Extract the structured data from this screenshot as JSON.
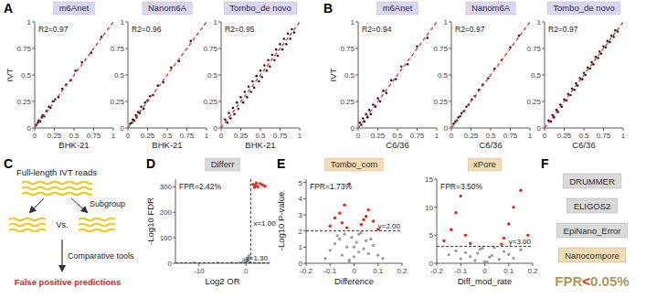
{
  "panel_labels": [
    "A",
    "B",
    "C",
    "D",
    "E",
    "F"
  ],
  "chart_data": [
    {
      "type": "scatter",
      "title": "m6Anet",
      "x_label": "BHK-21",
      "y_label": "IVT",
      "annotation": "R2=0.97",
      "xlim": [
        0,
        1
      ],
      "ylim": [
        0,
        1
      ],
      "xticks": [
        0,
        0.25,
        0.5,
        0.75,
        1
      ],
      "yticks": [
        0,
        0.25,
        0.5,
        0.75,
        1
      ],
      "series": [
        {
          "color": "#222222",
          "marker": "circle",
          "x": [
            0.02,
            0.04,
            0.05,
            0.07,
            0.09,
            0.1,
            0.12,
            0.15,
            0.18,
            0.2,
            0.23,
            0.26,
            0.3,
            0.35,
            0.4,
            0.46,
            0.52,
            0.6,
            0.72,
            0.85
          ],
          "values": [
            0.03,
            0.05,
            0.07,
            0.06,
            0.1,
            0.12,
            0.11,
            0.16,
            0.2,
            0.19,
            0.25,
            0.27,
            0.29,
            0.37,
            0.41,
            0.45,
            0.54,
            0.62,
            0.71,
            0.86
          ]
        }
      ],
      "ref_line": {
        "x": [
          0,
          1
        ],
        "values": [
          0,
          1
        ],
        "color": "#e8231c",
        "line_style": "dashed"
      }
    },
    {
      "type": "scatter",
      "title": "Nanom6A",
      "x_label": "BHK-21",
      "annotation": "R2=0.96",
      "xlim": [
        0,
        1
      ],
      "ylim": [
        0,
        1
      ],
      "xticks": [
        0,
        0.25,
        0.5,
        0.75,
        1
      ],
      "yticks": [
        0,
        0.25,
        0.5,
        0.75,
        1
      ],
      "series": [
        {
          "color": "#222222",
          "marker": "circle",
          "x": [
            0.03,
            0.05,
            0.06,
            0.08,
            0.1,
            0.11,
            0.13,
            0.15,
            0.17,
            0.2,
            0.22,
            0.25,
            0.28,
            0.32,
            0.38,
            0.45,
            0.55,
            0.65,
            0.8
          ],
          "values": [
            0.04,
            0.05,
            0.08,
            0.07,
            0.12,
            0.1,
            0.15,
            0.14,
            0.2,
            0.18,
            0.24,
            0.26,
            0.3,
            0.31,
            0.4,
            0.43,
            0.57,
            0.63,
            0.82
          ]
        }
      ],
      "ref_line": {
        "x": [
          0,
          1
        ],
        "values": [
          0,
          1
        ],
        "color": "#e8231c",
        "line_style": "dashed"
      }
    },
    {
      "type": "scatter",
      "title": "Tombo_de novo",
      "x_label": "BHK-21",
      "annotation": "R2=0.95",
      "xlim": [
        0,
        1
      ],
      "ylim": [
        0,
        1
      ],
      "xticks": [
        0,
        0.25,
        0.5,
        0.75,
        1
      ],
      "yticks": [
        0,
        0.25,
        0.5,
        0.75,
        1
      ],
      "series": [
        {
          "color": "#222222",
          "marker": "circle",
          "x": [
            0.05,
            0.08,
            0.1,
            0.12,
            0.15,
            0.17,
            0.2,
            0.22,
            0.25,
            0.28,
            0.3,
            0.33,
            0.35,
            0.38,
            0.4,
            0.42,
            0.45,
            0.48,
            0.5,
            0.52,
            0.55,
            0.58,
            0.6,
            0.62,
            0.65,
            0.68,
            0.7,
            0.72,
            0.75,
            0.78,
            0.8,
            0.83,
            0.85,
            0.88,
            0.9,
            0.93
          ],
          "values": [
            0.08,
            0.05,
            0.14,
            0.09,
            0.19,
            0.13,
            0.24,
            0.18,
            0.29,
            0.24,
            0.34,
            0.29,
            0.39,
            0.34,
            0.44,
            0.38,
            0.49,
            0.44,
            0.54,
            0.48,
            0.59,
            0.54,
            0.64,
            0.58,
            0.69,
            0.64,
            0.74,
            0.68,
            0.79,
            0.74,
            0.84,
            0.79,
            0.89,
            0.84,
            0.93,
            0.9
          ]
        }
      ],
      "ref_line": {
        "x": [
          0,
          1
        ],
        "values": [
          0,
          1
        ],
        "color": "#e8231c",
        "line_style": "dashed"
      }
    },
    {
      "type": "scatter",
      "title": "m6Anet",
      "x_label": "C6/36",
      "y_label": "IVT",
      "annotation": "R2=0.94",
      "xlim": [
        0,
        1
      ],
      "ylim": [
        0,
        1
      ],
      "xticks": [
        0,
        0.25,
        0.5,
        0.75,
        1
      ],
      "yticks": [
        0,
        0.25,
        0.5,
        0.75,
        1
      ],
      "series": [
        {
          "color": "#222222",
          "marker": "circle",
          "x": [
            0.02,
            0.04,
            0.06,
            0.08,
            0.1,
            0.12,
            0.14,
            0.16,
            0.19,
            0.22,
            0.25,
            0.28,
            0.32,
            0.36,
            0.42,
            0.48,
            0.55,
            0.63,
            0.75,
            0.88
          ],
          "values": [
            0.05,
            0.03,
            0.09,
            0.06,
            0.13,
            0.1,
            0.17,
            0.13,
            0.22,
            0.2,
            0.28,
            0.25,
            0.35,
            0.33,
            0.45,
            0.46,
            0.58,
            0.6,
            0.77,
            0.85
          ]
        }
      ],
      "ref_line": {
        "x": [
          0,
          1
        ],
        "values": [
          0,
          1
        ],
        "color": "#e8231c",
        "line_style": "dashed"
      }
    },
    {
      "type": "scatter",
      "title": "Nanom6A",
      "x_label": "C6/36",
      "annotation": "R2=0.97",
      "xlim": [
        0,
        1
      ],
      "ylim": [
        0,
        1
      ],
      "xticks": [
        0,
        0.25,
        0.5,
        0.75,
        1
      ],
      "yticks": [
        0,
        0.25,
        0.5,
        0.75,
        1
      ],
      "series": [
        {
          "color": "#222222",
          "marker": "circle",
          "x": [
            0.03,
            0.05,
            0.07,
            0.09,
            0.11,
            0.13,
            0.16,
            0.19,
            0.22,
            0.26,
            0.3,
            0.35,
            0.4,
            0.47,
            0.55,
            0.64,
            0.75,
            0.86
          ],
          "values": [
            0.04,
            0.06,
            0.07,
            0.1,
            0.11,
            0.14,
            0.16,
            0.2,
            0.22,
            0.27,
            0.3,
            0.36,
            0.41,
            0.47,
            0.56,
            0.64,
            0.76,
            0.87
          ]
        }
      ],
      "ref_line": {
        "x": [
          0,
          1
        ],
        "values": [
          0,
          1
        ],
        "color": "#e8231c",
        "line_style": "dashed"
      }
    },
    {
      "type": "scatter",
      "title": "Tombo_de novo",
      "x_label": "C6/36",
      "annotation": "R2=0.97",
      "xlim": [
        0,
        1
      ],
      "ylim": [
        0,
        1
      ],
      "xticks": [
        0,
        0.25,
        0.5,
        0.75,
        1
      ],
      "yticks": [
        0,
        0.25,
        0.5,
        0.75,
        1
      ],
      "series": [
        {
          "color": "#222222",
          "marker": "circle",
          "x": [
            0.05,
            0.08,
            0.1,
            0.12,
            0.15,
            0.17,
            0.2,
            0.22,
            0.25,
            0.28,
            0.3,
            0.33,
            0.35,
            0.38,
            0.4,
            0.42,
            0.45,
            0.48,
            0.5,
            0.52,
            0.55,
            0.58,
            0.6,
            0.62,
            0.65,
            0.68,
            0.7,
            0.72,
            0.75,
            0.78,
            0.8,
            0.83,
            0.85,
            0.88,
            0.9,
            0.93
          ],
          "values": [
            0.07,
            0.06,
            0.12,
            0.1,
            0.17,
            0.15,
            0.22,
            0.2,
            0.27,
            0.26,
            0.32,
            0.31,
            0.37,
            0.36,
            0.42,
            0.4,
            0.47,
            0.46,
            0.52,
            0.5,
            0.57,
            0.56,
            0.62,
            0.6,
            0.67,
            0.66,
            0.72,
            0.7,
            0.77,
            0.76,
            0.82,
            0.81,
            0.87,
            0.86,
            0.92,
            0.91
          ]
        }
      ],
      "ref_line": {
        "x": [
          0,
          1
        ],
        "values": [
          0,
          1
        ],
        "color": "#e8231c",
        "line_style": "dashed"
      }
    },
    {
      "type": "scatter",
      "title": "Differr",
      "x_label": "Log2 OR",
      "y_label": "-Log10 FDR",
      "annotation": "FPR=2.42%",
      "xlim": [
        -15,
        5
      ],
      "ylim": [
        0,
        330
      ],
      "xticks": [
        -10,
        0
      ],
      "yticks": [
        0,
        100,
        200,
        300
      ],
      "thresholds": [
        {
          "axis": "x",
          "value": 1,
          "label": "x=1.00"
        },
        {
          "axis": "y",
          "value": 1.3,
          "label": "y=1.30"
        }
      ],
      "series": [
        {
          "color": "#9e9e9e",
          "marker": "circle",
          "x": [
            -0.5,
            -0.3,
            -0.2,
            -0.1,
            0,
            0.1,
            0.2,
            0.3,
            0.5,
            -0.8,
            0.8,
            -1.5,
            -3,
            -6,
            -11,
            0.6,
            -0.4,
            0.4
          ],
          "values": [
            5,
            3,
            8,
            2,
            1,
            4,
            10,
            6,
            12,
            3,
            2,
            1,
            1,
            1,
            1,
            30,
            15,
            20
          ]
        },
        {
          "color": "#e8231c",
          "marker": "circle",
          "x": [
            1.5,
            2,
            2.5,
            3,
            1.8,
            2.2,
            3.5,
            4
          ],
          "values": [
            310,
            305,
            300,
            312,
            298,
            315,
            308,
            302
          ]
        }
      ]
    },
    {
      "type": "scatter",
      "title": "Tombo_com",
      "x_label": "Difference",
      "y_label": "-Log10 P-value",
      "annotation": "FPR=1.73%",
      "xlim": [
        -0.2,
        0.2
      ],
      "ylim": [
        0,
        5.2
      ],
      "xticks": [
        -0.2,
        -0.1,
        0,
        0.1,
        0.2
      ],
      "yticks": [
        0,
        1,
        2,
        3,
        4,
        5
      ],
      "thresholds": [
        {
          "axis": "y",
          "value": 2,
          "label": "y=2.00"
        }
      ],
      "series": [
        {
          "color": "#9e9e9e",
          "marker": "circle",
          "x": [
            -0.12,
            -0.1,
            -0.08,
            -0.06,
            -0.05,
            -0.04,
            -0.03,
            -0.02,
            -0.01,
            0,
            0.01,
            0.02,
            0.03,
            0.04,
            0.05,
            0.06,
            0.08,
            0.1,
            0.12,
            -0.07,
            0.07,
            0,
            -0.02,
            0.02
          ],
          "values": [
            0.3,
            0.8,
            1.2,
            1.5,
            0.5,
            1.8,
            1,
            0.2,
            1.6,
            0.4,
            1.3,
            0.7,
            1.9,
            0.9,
            1.4,
            0.6,
            1.1,
            0.5,
            0.3,
            1.7,
            1.5,
            1,
            0.1,
            1.8
          ]
        },
        {
          "color": "#e8231c",
          "marker": "circle",
          "x": [
            -0.1,
            -0.08,
            -0.06,
            -0.05,
            -0.04,
            -0.03,
            0.03,
            0.05,
            0.06,
            0.08,
            0.1,
            -0.02,
            0.04
          ],
          "values": [
            2.3,
            2.8,
            3.1,
            2.5,
            3.6,
            2.2,
            2.4,
            2.9,
            3.3,
            2.6,
            2.1,
            4.9,
            2.7
          ]
        }
      ]
    },
    {
      "type": "scatter",
      "title": "xPore",
      "x_label": "Diff_mod_rate",
      "annotation": "FPR=3.50%",
      "xlim": [
        -0.2,
        0.2
      ],
      "ylim": [
        0,
        15
      ],
      "xticks": [
        -0.2,
        -0.1,
        0,
        0.1,
        0.2
      ],
      "yticks": [
        0,
        5,
        10,
        15
      ],
      "thresholds": [
        {
          "axis": "y",
          "value": 3,
          "label": "y=3.00"
        }
      ],
      "series": [
        {
          "color": "#9e9e9e",
          "marker": "circle",
          "x": [
            -0.15,
            -0.12,
            -0.1,
            -0.08,
            -0.06,
            -0.04,
            -0.02,
            0,
            0.02,
            0.04,
            0.06,
            0.08,
            0.1,
            0.12,
            0.15,
            -0.03,
            0.03,
            -0.01,
            0.01
          ],
          "values": [
            1.5,
            2.2,
            0.8,
            1.9,
            1.2,
            0.5,
            2.5,
            0.3,
            1.1,
            2.8,
            0.7,
            2.1,
            1.6,
            0.9,
            2.4,
            1.8,
            1.4,
            2.7,
            0.2
          ]
        },
        {
          "color": "#e8231c",
          "marker": "circle",
          "x": [
            -0.17,
            -0.14,
            -0.12,
            -0.1,
            -0.08,
            0.08,
            0.1,
            0.12,
            0.15,
            0.18,
            -0.06,
            0.07
          ],
          "values": [
            4,
            6,
            9,
            12,
            5,
            4.5,
            7,
            10,
            13,
            5,
            3.5,
            3.4
          ]
        }
      ]
    }
  ],
  "diagram": {
    "reads_label": "Full-length IVT reads",
    "subgroup": "Subgroup",
    "versus": "Vs.",
    "tools": "Comparative tools",
    "result": "False positive predictions"
  },
  "tools_panel": {
    "tools": [
      "DRUMMER",
      "ELIGOS2",
      "EpiNano_Error",
      "Nanocompore"
    ],
    "fpr": [
      {
        "text": "FPR",
        "color": "#ad9a55"
      },
      {
        "text": "<",
        "color": "#e8231c"
      },
      {
        "text": "0.05%",
        "color": "#ad9a55"
      }
    ]
  }
}
